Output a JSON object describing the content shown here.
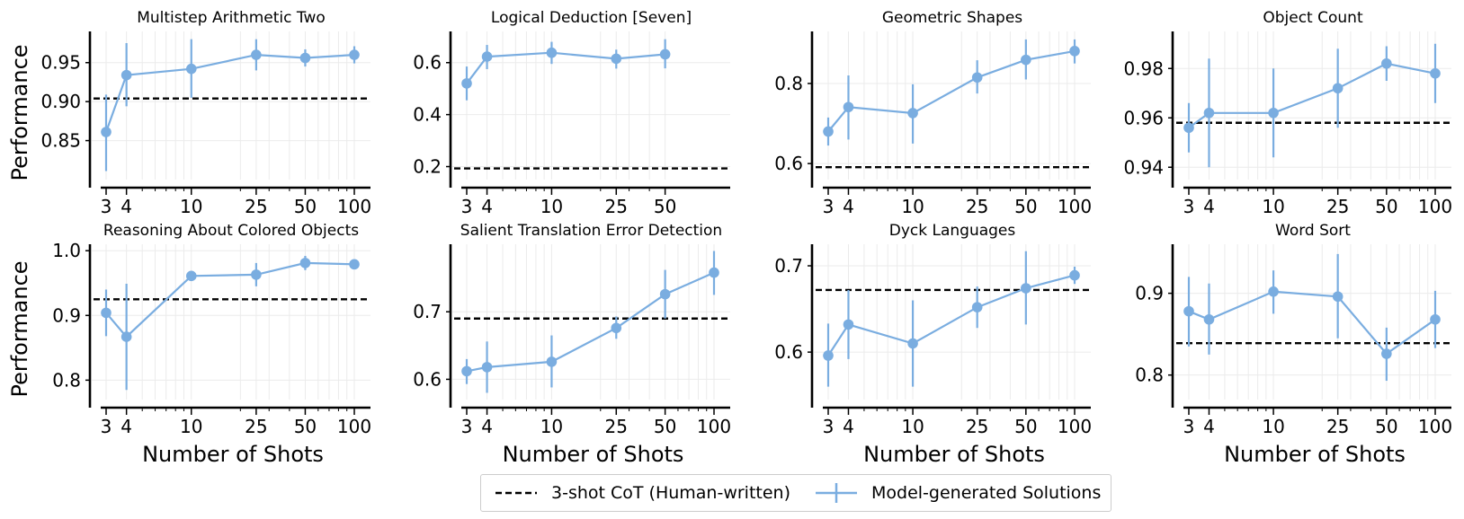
{
  "legend": {
    "baseline_label": "3-shot CoT (Human-written)",
    "model_label": "Model-generated Solutions"
  },
  "colors": {
    "model": "#7aade0",
    "baseline": "#000000"
  },
  "chart_data": [
    {
      "type": "line",
      "title": "Multistep Arithmetic Two",
      "xlabel": "",
      "ylabel": "Performance",
      "x_scale": "log",
      "x": [
        3,
        4,
        10,
        25,
        50,
        100
      ],
      "xticks": [
        "3",
        "4",
        "10",
        "25",
        "50",
        "100"
      ],
      "ylim": [
        0.8,
        0.99
      ],
      "yticks": [
        "0.85",
        "0.90",
        "0.95"
      ],
      "series": [
        {
          "values": [
            0.861,
            0.934,
            0.942,
            0.96,
            0.956,
            0.96
          ],
          "err_low": [
            0.811,
            0.894,
            0.905,
            0.94,
            0.945,
            0.949
          ],
          "err_high": [
            0.909,
            0.975,
            0.98,
            0.98,
            0.967,
            0.971
          ]
        }
      ],
      "baseline": 0.904,
      "grid": true
    },
    {
      "type": "line",
      "title": "Logical Deduction [Seven]",
      "xlabel": "",
      "ylabel": "",
      "x_scale": "log",
      "x": [
        3,
        4,
        10,
        25,
        50
      ],
      "xticks": [
        "3",
        "4",
        "10",
        "25",
        "50"
      ],
      "ylim": [
        0.15,
        0.72
      ],
      "yticks": [
        "0.2",
        "0.4",
        "0.6"
      ],
      "series": [
        {
          "values": [
            0.52,
            0.623,
            0.638,
            0.615,
            0.632
          ],
          "err_low": [
            0.455,
            0.575,
            0.595,
            0.577,
            0.578
          ],
          "err_high": [
            0.585,
            0.668,
            0.68,
            0.65,
            0.69
          ]
        }
      ],
      "baseline": 0.193,
      "grid": true
    },
    {
      "type": "line",
      "title": "Geometric Shapes",
      "xlabel": "",
      "ylabel": "",
      "x_scale": "log",
      "x": [
        3,
        4,
        10,
        25,
        50,
        100
      ],
      "xticks": [
        "3",
        "4",
        "10",
        "25",
        "50",
        "100"
      ],
      "ylim": [
        0.56,
        0.93
      ],
      "yticks": [
        "0.6",
        "0.8"
      ],
      "series": [
        {
          "values": [
            0.68,
            0.741,
            0.726,
            0.815,
            0.859,
            0.881
          ],
          "err_low": [
            0.645,
            0.66,
            0.65,
            0.775,
            0.81,
            0.85
          ],
          "err_high": [
            0.715,
            0.82,
            0.798,
            0.858,
            0.91,
            0.91
          ]
        }
      ],
      "baseline": 0.591,
      "grid": true
    },
    {
      "type": "line",
      "title": "Object Count",
      "xlabel": "",
      "ylabel": "",
      "x_scale": "log",
      "x": [
        3,
        4,
        10,
        25,
        50,
        100
      ],
      "xticks": [
        "3",
        "4",
        "10",
        "25",
        "50",
        "100"
      ],
      "ylim": [
        0.935,
        0.995
      ],
      "yticks": [
        "0.94",
        "0.96",
        "0.98"
      ],
      "series": [
        {
          "values": [
            0.956,
            0.962,
            0.962,
            0.972,
            0.982,
            0.978
          ],
          "err_low": [
            0.946,
            0.94,
            0.944,
            0.956,
            0.975,
            0.966
          ],
          "err_high": [
            0.966,
            0.984,
            0.98,
            0.988,
            0.989,
            0.99
          ]
        }
      ],
      "baseline": 0.958,
      "grid": true
    },
    {
      "type": "line",
      "title": "Reasoning About Colored Objects",
      "xlabel": "Number of Shots",
      "ylabel": "Performance",
      "x_scale": "log",
      "x": [
        3,
        4,
        10,
        25,
        50,
        100
      ],
      "xticks": [
        "3",
        "4",
        "10",
        "25",
        "50",
        "100"
      ],
      "ylim": [
        0.77,
        1.01
      ],
      "yticks": [
        "0.8",
        "0.9",
        "1.0"
      ],
      "series": [
        {
          "values": [
            0.904,
            0.867,
            0.961,
            0.963,
            0.981,
            0.979
          ],
          "err_low": [
            0.868,
            0.785,
            0.955,
            0.945,
            0.97,
            0.972
          ],
          "err_high": [
            0.94,
            0.949,
            0.967,
            0.981,
            0.992,
            0.986
          ]
        }
      ],
      "baseline": 0.925,
      "grid": true
    },
    {
      "type": "line",
      "title": "Salient Translation Error Detection",
      "xlabel": "Number of Shots",
      "ylabel": "",
      "x_scale": "log",
      "x": [
        3,
        4,
        10,
        25,
        50,
        100
      ],
      "xticks": [
        "3",
        "4",
        "10",
        "25",
        "50",
        "100"
      ],
      "ylim": [
        0.57,
        0.8
      ],
      "yticks": [
        "0.6",
        "0.7"
      ],
      "series": [
        {
          "values": [
            0.612,
            0.618,
            0.626,
            0.676,
            0.726,
            0.758
          ],
          "err_low": [
            0.593,
            0.58,
            0.588,
            0.66,
            0.69,
            0.725
          ],
          "err_high": [
            0.63,
            0.656,
            0.665,
            0.693,
            0.762,
            0.79
          ]
        }
      ],
      "baseline": 0.69,
      "grid": true
    },
    {
      "type": "line",
      "title": "Dyck Languages",
      "xlabel": "Number of Shots",
      "ylabel": "",
      "x_scale": "log",
      "x": [
        3,
        4,
        10,
        25,
        50,
        100
      ],
      "xticks": [
        "3",
        "4",
        "10",
        "25",
        "50",
        "100"
      ],
      "ylim": [
        0.545,
        0.725
      ],
      "yticks": [
        "0.6",
        "0.7"
      ],
      "series": [
        {
          "values": [
            0.596,
            0.632,
            0.61,
            0.652,
            0.674,
            0.689
          ],
          "err_low": [
            0.56,
            0.592,
            0.56,
            0.628,
            0.632,
            0.679
          ],
          "err_high": [
            0.633,
            0.672,
            0.66,
            0.676,
            0.717,
            0.699
          ]
        }
      ],
      "baseline": 0.672,
      "grid": true
    },
    {
      "type": "line",
      "title": "Word Sort",
      "xlabel": "Number of Shots",
      "ylabel": "",
      "x_scale": "log",
      "x": [
        3,
        4,
        10,
        25,
        50,
        100
      ],
      "xticks": [
        "3",
        "4",
        "10",
        "25",
        "50",
        "100"
      ],
      "ylim": [
        0.77,
        0.96
      ],
      "yticks": [
        "0.8",
        "0.9"
      ],
      "series": [
        {
          "values": [
            0.878,
            0.868,
            0.902,
            0.896,
            0.826,
            0.868
          ],
          "err_low": [
            0.835,
            0.825,
            0.875,
            0.845,
            0.793,
            0.833
          ],
          "err_high": [
            0.92,
            0.912,
            0.928,
            0.948,
            0.858,
            0.903
          ]
        }
      ],
      "baseline": 0.839,
      "grid": true
    }
  ]
}
